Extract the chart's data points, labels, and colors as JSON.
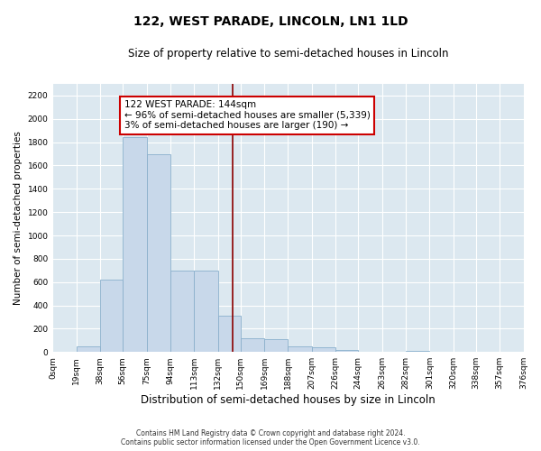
{
  "title": "122, WEST PARADE, LINCOLN, LN1 1LD",
  "subtitle": "Size of property relative to semi-detached houses in Lincoln",
  "xlabel": "Distribution of semi-detached houses by size in Lincoln",
  "ylabel": "Number of semi-detached properties",
  "footer_line1": "Contains HM Land Registry data © Crown copyright and database right 2024.",
  "footer_line2": "Contains public sector information licensed under the Open Government Licence v3.0.",
  "annotation_line1": "122 WEST PARADE: 144sqm",
  "annotation_line2": "← 96% of semi-detached houses are smaller (5,339)",
  "annotation_line3": "3% of semi-detached houses are larger (190) →",
  "property_size": 144,
  "bar_color": "#c8d8ea",
  "bar_edge_color": "#8ab0cc",
  "marker_color": "#8b0000",
  "background_color": "#dce8f0",
  "bin_edges": [
    0,
    19,
    38,
    56,
    75,
    94,
    113,
    132,
    150,
    169,
    188,
    207,
    226,
    244,
    263,
    282,
    301,
    320,
    338,
    357,
    376
  ],
  "bin_labels": [
    "0sqm",
    "19sqm",
    "38sqm",
    "56sqm",
    "75sqm",
    "94sqm",
    "113sqm",
    "132sqm",
    "150sqm",
    "169sqm",
    "188sqm",
    "207sqm",
    "226sqm",
    "244sqm",
    "263sqm",
    "282sqm",
    "301sqm",
    "320sqm",
    "338sqm",
    "357sqm",
    "376sqm"
  ],
  "bar_heights": [
    5,
    50,
    620,
    1840,
    1700,
    700,
    700,
    310,
    120,
    110,
    50,
    40,
    20,
    0,
    0,
    10,
    0,
    0,
    0,
    0
  ],
  "ylim": [
    0,
    2300
  ],
  "yticks": [
    0,
    200,
    400,
    600,
    800,
    1000,
    1200,
    1400,
    1600,
    1800,
    2000,
    2200
  ]
}
